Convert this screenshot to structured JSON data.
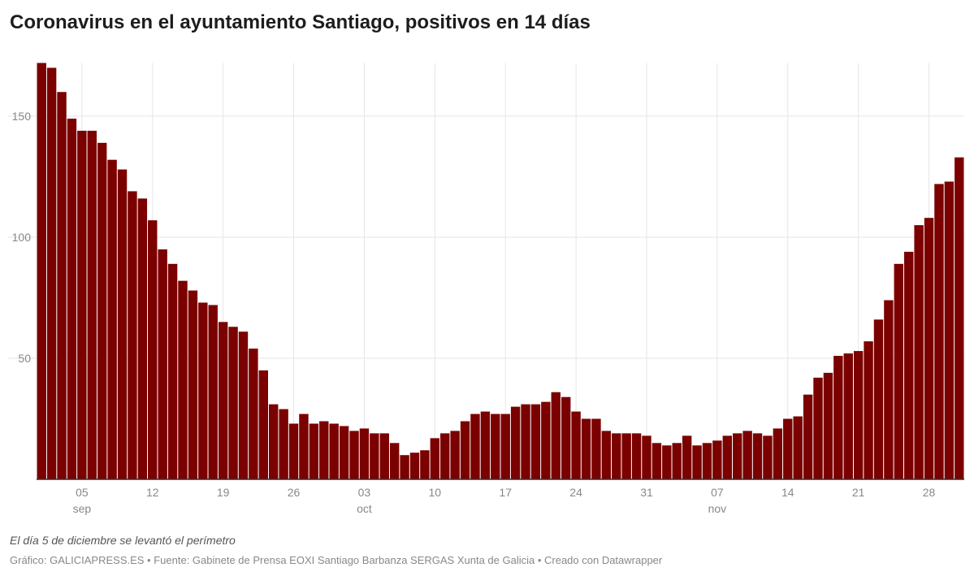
{
  "chart_data": {
    "type": "bar",
    "title": "Coronavirus en el ayuntamiento Santiago, positivos en 14 días",
    "xlabel": "",
    "ylabel": "",
    "x_start": "2020-09-01",
    "x_end": "2020-12-01",
    "ylim": [
      0,
      172
    ],
    "y_ticks": [
      50,
      100,
      150
    ],
    "grid": true,
    "bar_color": "#7b0000",
    "x_tick_labels": [
      {
        "day": 5,
        "label": "05",
        "month": "sep"
      },
      {
        "day": 12,
        "label": "12"
      },
      {
        "day": 19,
        "label": "19"
      },
      {
        "day": 26,
        "label": "26"
      },
      {
        "day": 33,
        "label": "03",
        "month": "oct"
      },
      {
        "day": 40,
        "label": "10"
      },
      {
        "day": 47,
        "label": "17"
      },
      {
        "day": 54,
        "label": "24"
      },
      {
        "day": 61,
        "label": "31"
      },
      {
        "day": 68,
        "label": "07",
        "month": "nov"
      },
      {
        "day": 75,
        "label": "14"
      },
      {
        "day": 82,
        "label": "21"
      },
      {
        "day": 89,
        "label": "28"
      }
    ],
    "values": [
      172,
      170,
      160,
      149,
      144,
      144,
      139,
      132,
      128,
      119,
      116,
      107,
      95,
      89,
      82,
      78,
      73,
      72,
      65,
      63,
      61,
      54,
      45,
      31,
      29,
      23,
      27,
      23,
      24,
      23,
      22,
      20,
      21,
      19,
      19,
      15,
      10,
      11,
      12,
      17,
      19,
      20,
      24,
      27,
      28,
      27,
      27,
      30,
      31,
      31,
      32,
      36,
      34,
      28,
      25,
      25,
      20,
      19,
      19,
      19,
      18,
      15,
      14,
      15,
      18,
      14,
      15,
      16,
      18,
      19,
      20,
      19,
      18,
      21,
      25,
      26,
      35,
      42,
      44,
      51,
      52,
      53,
      57,
      66,
      74,
      89,
      94,
      105,
      108,
      122,
      123,
      133
    ]
  },
  "footer": {
    "note": "El día 5 de diciembre se levantó el perímetro",
    "credits": "Gráfico: GALICIAPRESS.ES • Fuente: Gabinete de Prensa EOXI Santiago Barbanza SERGAS Xunta de Galicia • Creado con Datawrapper"
  }
}
